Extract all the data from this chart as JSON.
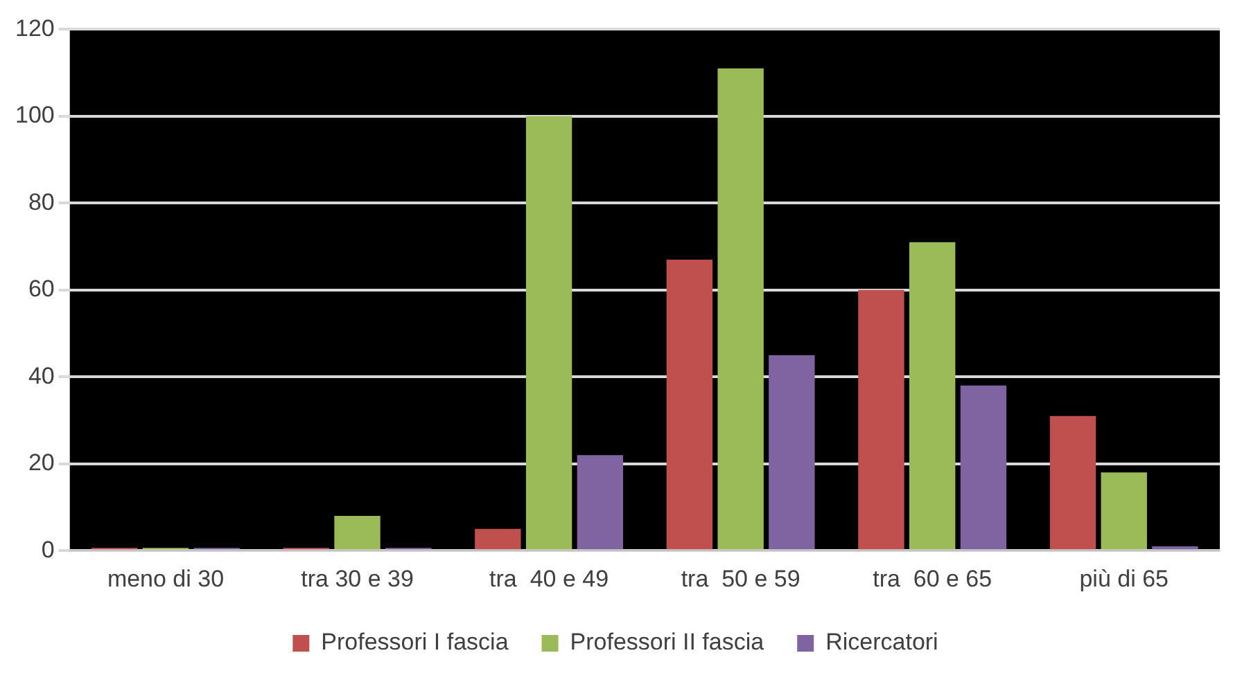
{
  "chart_data": {
    "type": "bar",
    "categories": [
      "meno di 30",
      "tra 30 e 39",
      "tra  40 e 49",
      "tra  50 e 59",
      "tra  60 e 65",
      "più di 65"
    ],
    "series": [
      {
        "name": "Professori I fascia",
        "color": "#c0504d",
        "values": [
          0,
          0,
          5,
          67,
          60,
          31
        ]
      },
      {
        "name": "Professori II fascia",
        "color": "#9bbb59",
        "values": [
          0,
          8,
          100,
          111,
          71,
          18
        ]
      },
      {
        "name": "Ricercatori",
        "color": "#8064a2",
        "values": [
          0,
          0,
          22,
          45,
          38,
          1
        ]
      }
    ],
    "ylim": [
      0,
      120
    ],
    "yticks": [
      0,
      20,
      40,
      60,
      80,
      100,
      120
    ],
    "grid": "y",
    "legend": "bottom"
  }
}
